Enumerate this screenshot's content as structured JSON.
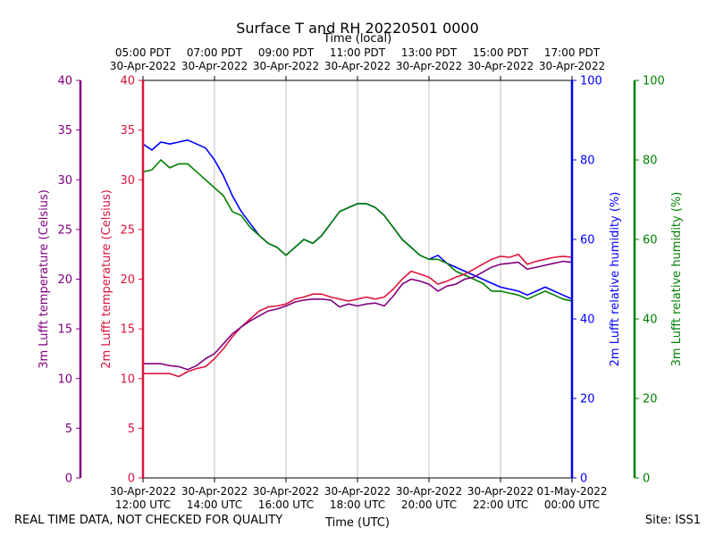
{
  "chart_data": {
    "type": "line",
    "title": "Surface T and RH 20220501 0000",
    "x_top_title": "Time (local)",
    "x_bottom_title": "Time (UTC)",
    "x_range_hours_utc": [
      12,
      24
    ],
    "x_bottom_ticks": [
      {
        "hour": 12,
        "line1": "30-Apr-2022",
        "line2": "12:00 UTC"
      },
      {
        "hour": 14,
        "line1": "30-Apr-2022",
        "line2": "14:00 UTC"
      },
      {
        "hour": 16,
        "line1": "30-Apr-2022",
        "line2": "16:00 UTC"
      },
      {
        "hour": 18,
        "line1": "30-Apr-2022",
        "line2": "18:00 UTC"
      },
      {
        "hour": 20,
        "line1": "30-Apr-2022",
        "line2": "20:00 UTC"
      },
      {
        "hour": 22,
        "line1": "30-Apr-2022",
        "line2": "22:00 UTC"
      },
      {
        "hour": 24,
        "line1": "01-May-2022",
        "line2": "00:00 UTC"
      }
    ],
    "x_top_ticks": [
      {
        "hour": 12,
        "line1": "05:00 PDT",
        "line2": "30-Apr-2022"
      },
      {
        "hour": 14,
        "line1": "07:00 PDT",
        "line2": "30-Apr-2022"
      },
      {
        "hour": 16,
        "line1": "09:00 PDT",
        "line2": "30-Apr-2022"
      },
      {
        "hour": 18,
        "line1": "11:00 PDT",
        "line2": "30-Apr-2022"
      },
      {
        "hour": 20,
        "line1": "13:00 PDT",
        "line2": "30-Apr-2022"
      },
      {
        "hour": 22,
        "line1": "15:00 PDT",
        "line2": "30-Apr-2022"
      },
      {
        "hour": 24,
        "line1": "17:00 PDT",
        "line2": "30-Apr-2022"
      }
    ],
    "axes": [
      {
        "id": "t3",
        "label": "3m Lufft temperature (Celsius)",
        "color": "#800080",
        "range": [
          0,
          40
        ],
        "ticks": [
          0,
          5,
          10,
          15,
          20,
          25,
          30,
          35,
          40
        ],
        "side": "left-outer"
      },
      {
        "id": "t2",
        "label": "2m Lufft temperature (Celsius)",
        "color": "#dc143c",
        "range": [
          0,
          40
        ],
        "ticks": [
          0,
          5,
          10,
          15,
          20,
          25,
          30,
          35,
          40
        ],
        "side": "left-inner"
      },
      {
        "id": "rh2",
        "label": "2m Lufft relative humidity (%)",
        "color": "#0000ff",
        "range": [
          0,
          100
        ],
        "ticks": [
          0,
          20,
          40,
          60,
          80,
          100
        ],
        "side": "right-inner"
      },
      {
        "id": "rh3",
        "label": "3m Lufft relative humidity (%)",
        "color": "#008000",
        "range": [
          0,
          100
        ],
        "ticks": [
          0,
          20,
          40,
          60,
          80,
          100
        ],
        "side": "right-outer"
      }
    ],
    "series": [
      {
        "name": "2m Lufft relative humidity",
        "axis": "rh2",
        "color": "#0000ff",
        "x": [
          12.0,
          12.25,
          12.5,
          12.75,
          13.0,
          13.25,
          13.5,
          13.75,
          14.0,
          14.25,
          14.5,
          14.75,
          15.0,
          15.25,
          15.5,
          15.75,
          16.0,
          16.25,
          16.5,
          16.75,
          17.0,
          17.25,
          17.5,
          17.75,
          18.0,
          18.25,
          18.5,
          18.75,
          19.0,
          19.25,
          19.5,
          19.75,
          20.0,
          20.25,
          20.5,
          20.75,
          21.0,
          21.25,
          21.5,
          21.75,
          22.0,
          22.25,
          22.5,
          22.75,
          23.0,
          23.25,
          23.5,
          23.75,
          24.0
        ],
        "values": [
          84,
          82.5,
          84.5,
          84,
          84.5,
          85,
          84,
          83,
          80,
          76,
          71,
          67,
          64,
          61,
          59,
          58,
          56,
          58,
          60,
          59,
          61,
          64,
          67,
          68,
          69,
          69,
          68,
          66,
          63,
          60,
          58,
          56,
          55,
          56,
          54,
          53,
          52,
          51,
          50,
          49,
          48,
          47.5,
          47,
          46,
          47,
          48,
          47,
          46,
          45
        ]
      },
      {
        "name": "3m Lufft relative humidity",
        "axis": "rh3",
        "color": "#008000",
        "x": [
          12.0,
          12.25,
          12.5,
          12.75,
          13.0,
          13.25,
          13.5,
          13.75,
          14.0,
          14.25,
          14.5,
          14.75,
          15.0,
          15.25,
          15.5,
          15.75,
          16.0,
          16.25,
          16.5,
          16.75,
          17.0,
          17.25,
          17.5,
          17.75,
          18.0,
          18.25,
          18.5,
          18.75,
          19.0,
          19.25,
          19.5,
          19.75,
          20.0,
          20.25,
          20.5,
          20.75,
          21.0,
          21.25,
          21.5,
          21.75,
          22.0,
          22.25,
          22.5,
          22.75,
          23.0,
          23.25,
          23.5,
          23.75,
          24.0
        ],
        "values": [
          77,
          77.5,
          80,
          78,
          79,
          79,
          77,
          75,
          73,
          71,
          67,
          66,
          63,
          61,
          59,
          58,
          56,
          58,
          60,
          59,
          61,
          64,
          67,
          68,
          69,
          69,
          68,
          66,
          63,
          60,
          58,
          56,
          55,
          55,
          54,
          52,
          51,
          50,
          49,
          47,
          47,
          46.5,
          46,
          45,
          46,
          47,
          46,
          45,
          44.5
        ]
      },
      {
        "name": "2m Lufft temperature",
        "axis": "t2",
        "color": "#dc143c",
        "x": [
          12.0,
          12.25,
          12.5,
          12.75,
          13.0,
          13.25,
          13.5,
          13.75,
          14.0,
          14.25,
          14.5,
          14.75,
          15.0,
          15.25,
          15.5,
          15.75,
          16.0,
          16.25,
          16.5,
          16.75,
          17.0,
          17.25,
          17.5,
          17.75,
          18.0,
          18.25,
          18.5,
          18.75,
          19.0,
          19.25,
          19.5,
          19.75,
          20.0,
          20.25,
          20.5,
          20.75,
          21.0,
          21.25,
          21.5,
          21.75,
          22.0,
          22.25,
          22.5,
          22.75,
          23.0,
          23.25,
          23.5,
          23.75,
          24.0
        ],
        "values": [
          10.5,
          10.5,
          10.5,
          10.5,
          10.2,
          10.7,
          11.0,
          11.2,
          12.0,
          13.0,
          14.2,
          15.2,
          16.0,
          16.8,
          17.2,
          17.3,
          17.5,
          18.0,
          18.2,
          18.5,
          18.5,
          18.2,
          18.0,
          17.8,
          18.0,
          18.2,
          18.0,
          18.2,
          19.0,
          20.0,
          20.8,
          20.5,
          20.2,
          19.5,
          19.8,
          20.2,
          20.5,
          21.0,
          21.5,
          22.0,
          22.3,
          22.2,
          22.5,
          21.5,
          21.8,
          22.0,
          22.2,
          22.3,
          22.2
        ]
      },
      {
        "name": "3m Lufft temperature",
        "axis": "t3",
        "color": "#800080",
        "x": [
          12.0,
          12.25,
          12.5,
          12.75,
          13.0,
          13.25,
          13.5,
          13.75,
          14.0,
          14.25,
          14.5,
          14.75,
          15.0,
          15.25,
          15.5,
          15.75,
          16.0,
          16.25,
          16.5,
          16.75,
          17.0,
          17.25,
          17.5,
          17.75,
          18.0,
          18.25,
          18.5,
          18.75,
          19.0,
          19.25,
          19.5,
          19.75,
          20.0,
          20.25,
          20.5,
          20.75,
          21.0,
          21.25,
          21.5,
          21.75,
          22.0,
          22.25,
          22.5,
          22.75,
          23.0,
          23.25,
          23.5,
          23.75,
          24.0
        ],
        "values": [
          11.5,
          11.5,
          11.5,
          11.3,
          11.2,
          10.9,
          11.3,
          12.0,
          12.5,
          13.5,
          14.5,
          15.2,
          15.8,
          16.3,
          16.8,
          17.0,
          17.3,
          17.7,
          17.9,
          18.0,
          18.0,
          17.9,
          17.2,
          17.5,
          17.3,
          17.5,
          17.6,
          17.3,
          18.3,
          19.5,
          20.0,
          19.8,
          19.5,
          18.8,
          19.3,
          19.5,
          20.0,
          20.2,
          20.7,
          21.2,
          21.5,
          21.6,
          21.7,
          21.0,
          21.2,
          21.4,
          21.6,
          21.8,
          21.7
        ]
      }
    ]
  },
  "footer": {
    "left": "REAL TIME DATA, NOT CHECKED FOR QUALITY",
    "right": "Site: ISS1"
  }
}
